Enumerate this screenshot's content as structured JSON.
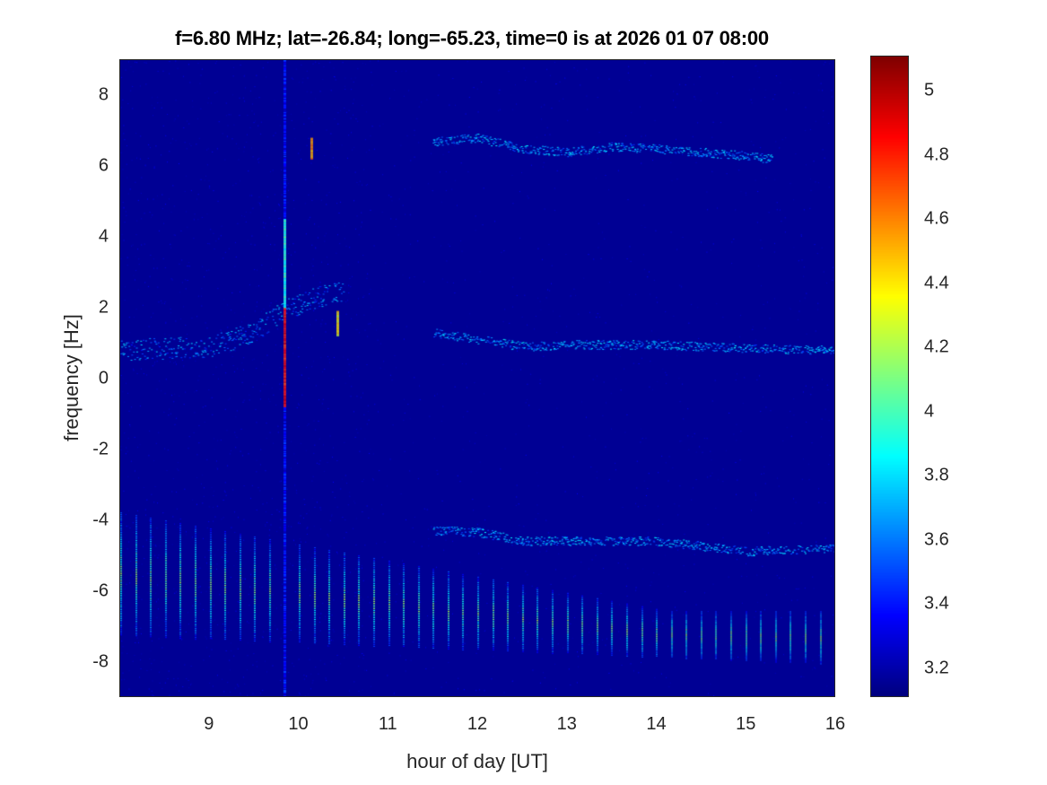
{
  "chart_data": {
    "type": "heatmap",
    "title": "f=6.80 MHz;  lat=-26.84; long=-65.23, time=0 is at 2026 01 07 08:00",
    "xlabel": "hour of day [UT]",
    "ylabel": "frequency [Hz]",
    "xlim": [
      8,
      16
    ],
    "ylim": [
      -9,
      9
    ],
    "clim": [
      3.11,
      5.11
    ],
    "colormap": "jet",
    "xticks": [
      9,
      10,
      11,
      12,
      13,
      14,
      15,
      16
    ],
    "yticks": [
      -8,
      -6,
      -4,
      -2,
      0,
      2,
      4,
      6,
      8
    ],
    "cticks": [
      3.2,
      3.4,
      3.6,
      3.8,
      4,
      4.2,
      4.4,
      4.6,
      4.8,
      5
    ],
    "background_value": 3.15,
    "traces": [
      {
        "name": "upper",
        "value": 3.75,
        "points": [
          [
            11.5,
            6.7
          ],
          [
            12,
            6.8
          ],
          [
            12.5,
            6.5
          ],
          [
            13,
            6.4
          ],
          [
            13.5,
            6.55
          ],
          [
            14,
            6.5
          ],
          [
            14.5,
            6.4
          ],
          [
            15,
            6.3
          ],
          [
            15.3,
            6.2
          ]
        ]
      },
      {
        "name": "middle",
        "value": 3.75,
        "points": [
          [
            11.5,
            1.3
          ],
          [
            12,
            1.1
          ],
          [
            12.5,
            0.9
          ],
          [
            13,
            0.95
          ],
          [
            14,
            0.95
          ],
          [
            15,
            0.85
          ],
          [
            16,
            0.8
          ]
        ]
      },
      {
        "name": "lower",
        "value": 3.75,
        "points": [
          [
            11.5,
            -4.3
          ],
          [
            12,
            -4.35
          ],
          [
            12.5,
            -4.6
          ],
          [
            13,
            -4.6
          ],
          [
            14,
            -4.6
          ],
          [
            15,
            -4.9
          ],
          [
            16,
            -4.8
          ]
        ]
      },
      {
        "name": "rising",
        "value": 3.7,
        "points": [
          [
            8,
            0.8
          ],
          [
            9,
            0.9
          ],
          [
            9.5,
            1.3
          ],
          [
            9.8,
            1.9
          ],
          [
            10.2,
            2.3
          ],
          [
            10.5,
            2.5
          ]
        ]
      }
    ],
    "spikes": [
      {
        "hour": 9.83,
        "fmin": -9,
        "fmax": 9,
        "value": 3.4
      },
      {
        "hour": 9.83,
        "fmin": -0.8,
        "fmax": 2.0,
        "value": 4.9
      },
      {
        "hour": 9.83,
        "fmin": 2.0,
        "fmax": 4.5,
        "value": 4.0
      },
      {
        "hour": 10.13,
        "fmin": 6.2,
        "fmax": 6.8,
        "value": 4.6
      },
      {
        "hour": 10.42,
        "fmin": 1.2,
        "fmax": 1.9,
        "value": 4.4
      }
    ],
    "stripes": {
      "period_hours": 0.1667,
      "start": 8.0,
      "end": 15.9,
      "value": 3.9,
      "early_range": [
        -7.3,
        -3.8
      ],
      "late_range": [
        -8.1,
        -6.6
      ]
    }
  }
}
